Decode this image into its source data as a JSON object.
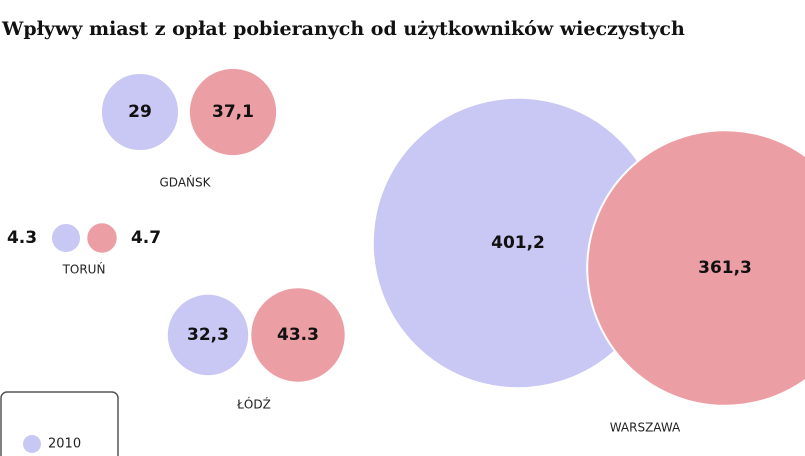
{
  "chart_data": {
    "type": "bubble",
    "title": "Wpływy miast z opłat pobieranych od użytkowników wieczystych",
    "categories": [
      "GDAŃSK",
      "TORUŃ",
      "ŁÓDŹ",
      "WARSZAWA"
    ],
    "series": [
      {
        "name": "2010",
        "color": "#c9c7f4",
        "values": [
          29,
          4.3,
          32.3,
          401.2
        ],
        "value_labels": [
          "29",
          "4.3",
          "32,3",
          "401,2"
        ]
      },
      {
        "color": "#ec9ea5",
        "values": [
          37.1,
          4.7,
          43.3,
          361.3
        ],
        "value_labels": [
          "37,1",
          "4.7",
          "43.3",
          "361,3"
        ]
      }
    ]
  }
}
